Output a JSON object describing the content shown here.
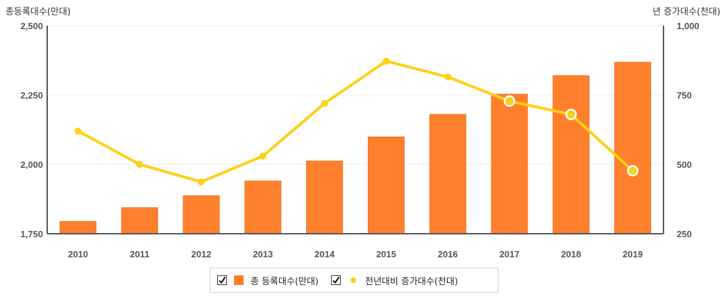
{
  "colors": {
    "bar": "#FF802C",
    "bar_border": "#F0731F",
    "line": "#FCD116",
    "grid": "#ececec",
    "axis": "#555555"
  },
  "chart_data": {
    "type": "bar",
    "left_axis_title": "총등록대수(만대)",
    "right_axis_title": "년 증가대수(천대)",
    "categories": [
      "2010",
      "2011",
      "2012",
      "2013",
      "2014",
      "2015",
      "2016",
      "2017",
      "2018",
      "2019"
    ],
    "left_ylim": [
      1750,
      2500
    ],
    "right_ylim": [
      250,
      1000
    ],
    "left_ticks": [
      "1,750",
      "2,000",
      "2,250",
      "2,500"
    ],
    "right_ticks": [
      "250",
      "500",
      "750",
      "1,000"
    ],
    "grid": true,
    "legend_position": "bottom",
    "series": [
      {
        "name": "총 등록대수(만대)",
        "type": "bar",
        "axis": "left",
        "values": [
          1794,
          1844,
          1887,
          1940,
          2012,
          2099,
          2180,
          2253,
          2320,
          2368
        ]
      },
      {
        "name": "전년대비 증가대수(천대)",
        "type": "line",
        "axis": "right",
        "values": [
          620,
          500,
          437,
          530,
          720,
          872,
          815,
          728,
          680,
          477
        ]
      }
    ]
  }
}
